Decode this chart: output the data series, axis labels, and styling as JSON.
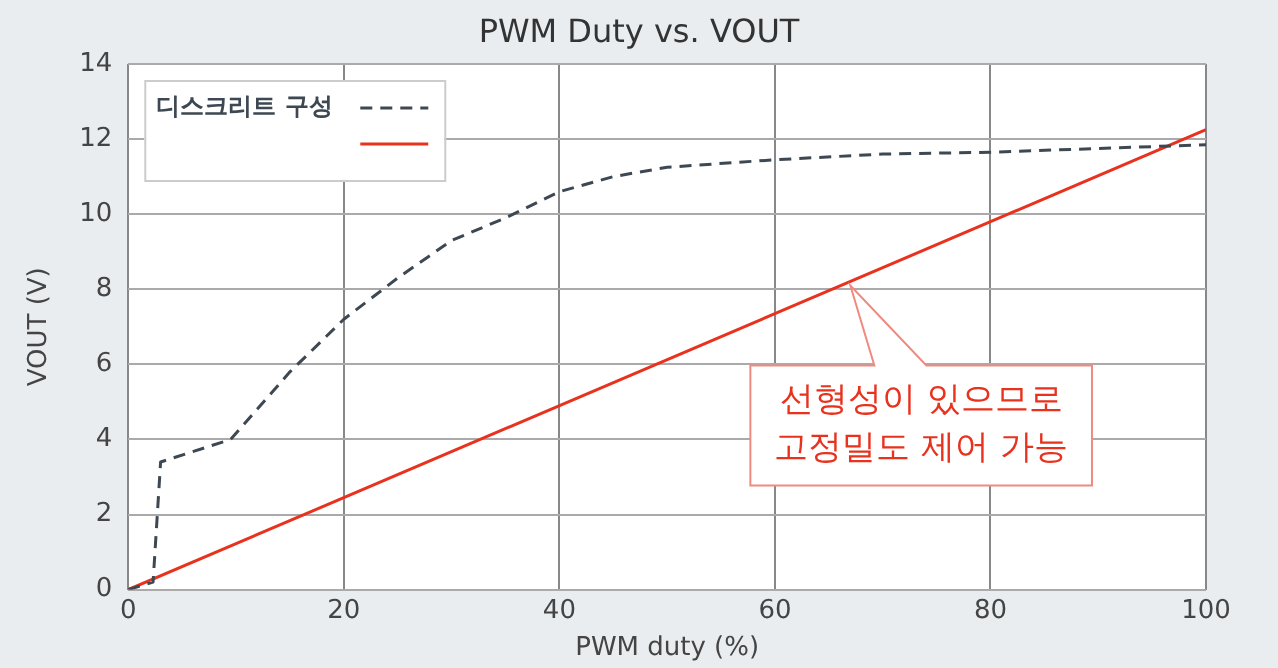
{
  "chart_data": {
    "type": "line",
    "title": "PWM Duty vs. VOUT",
    "xlabel": "PWM duty (%)",
    "ylabel": "VOUT (V)",
    "xlim": [
      0,
      100
    ],
    "xticks": [
      0,
      20,
      40,
      60,
      80,
      100
    ],
    "ylim": [
      0,
      14
    ],
    "yticks": [
      0,
      2,
      4,
      6,
      8,
      10,
      12,
      14
    ],
    "grid": true,
    "legend": "top left",
    "marker": "none",
    "series": [
      {
        "name": "디스크리트 구성",
        "color": "#3d4852",
        "line_style": "dashed",
        "x": [
          0,
          2.3,
          3,
          9.5,
          15,
          20,
          25,
          30,
          35,
          40,
          45,
          50,
          60,
          70,
          80,
          90,
          100
        ],
        "values": [
          0,
          0.2,
          3.4,
          4.0,
          5.8,
          7.2,
          8.3,
          9.3,
          9.9,
          10.6,
          11.0,
          11.25,
          11.45,
          11.6,
          11.65,
          11.75,
          11.85
        ]
      },
      {
        "color": "#e8321e",
        "line_style": "solid",
        "x": [
          0,
          100
        ],
        "values": [
          0,
          12.25
        ]
      }
    ],
    "annotations": [
      {
        "text": "선형성이 있으므로\n고정밀도 제어 가능",
        "x": 67,
        "y": 8.1
      }
    ]
  }
}
